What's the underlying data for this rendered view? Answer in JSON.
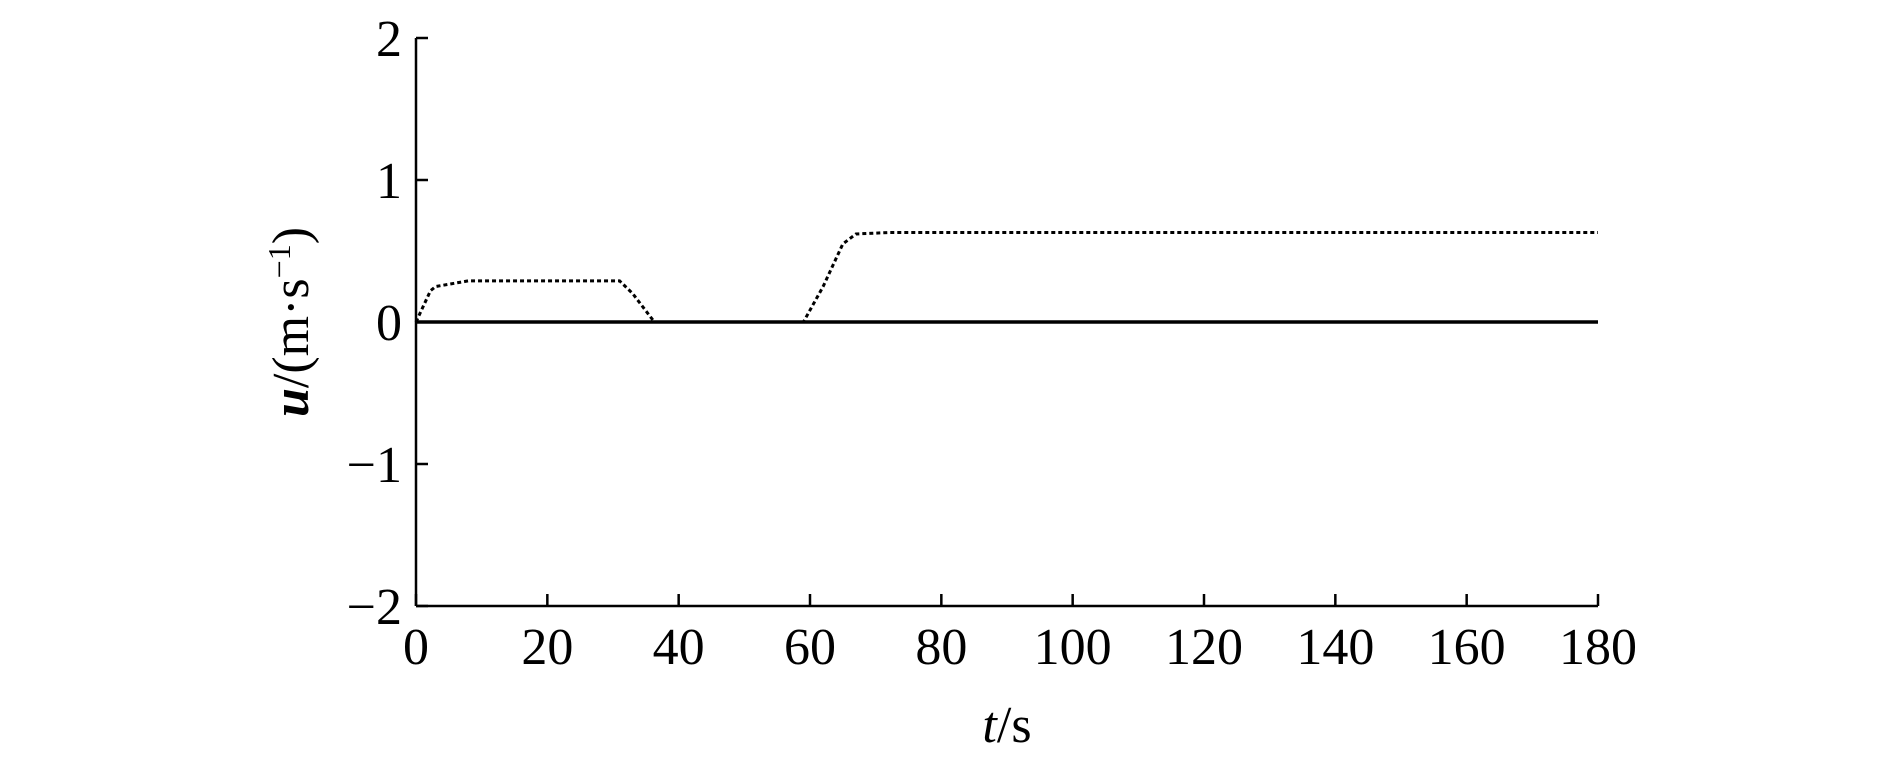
{
  "chart_data": {
    "type": "line",
    "x_label_parts": [
      "t",
      "/s"
    ],
    "y_label_parts": [
      "u",
      "/(m·s",
      "−1",
      ")"
    ],
    "xlim": [
      0,
      180
    ],
    "xticks": [
      0,
      20,
      40,
      60,
      80,
      100,
      120,
      140,
      160,
      180
    ],
    "ylim": [
      -2,
      2
    ],
    "yticks": [
      {
        "value": -2,
        "label": "−2"
      },
      {
        "value": -1,
        "label": "−1"
      },
      0,
      1,
      2
    ],
    "series": [
      {
        "color": "#000000",
        "dashed": false,
        "x": [
          0,
          180
        ],
        "values": [
          0,
          0
        ]
      },
      {
        "color": "#000000",
        "dashed": true,
        "x": [
          0,
          2.2,
          3,
          8,
          31,
          33,
          36.3,
          59,
          62,
          65,
          67,
          72,
          180
        ],
        "values": [
          0,
          0.22,
          0.25,
          0.29,
          0.29,
          0.2,
          0,
          0,
          0.25,
          0.55,
          0.62,
          0.63,
          0.63
        ]
      }
    ]
  }
}
